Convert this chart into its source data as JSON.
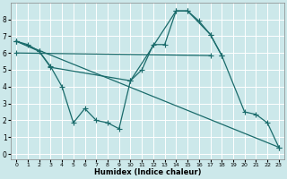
{
  "bg_color": "#cce8ea",
  "grid_color": "#ffffff",
  "line_color": "#1a6b6b",
  "line_width": 0.9,
  "marker": "+",
  "marker_size": 4,
  "marker_lw": 0.8,
  "xlabel": "Humidex (Indice chaleur)",
  "xlim": [
    -0.5,
    23.5
  ],
  "ylim": [
    -0.3,
    9.0
  ],
  "xticks": [
    0,
    1,
    2,
    3,
    4,
    5,
    6,
    7,
    8,
    9,
    10,
    11,
    12,
    13,
    14,
    15,
    16,
    17,
    18,
    19,
    20,
    21,
    22,
    23
  ],
  "yticks": [
    0,
    1,
    2,
    3,
    4,
    5,
    6,
    7,
    8
  ],
  "line1_x": [
    0,
    1,
    2,
    3,
    4,
    5,
    6,
    7,
    8,
    9,
    10,
    11,
    12,
    13,
    14,
    15,
    16,
    17,
    18
  ],
  "line1_y": [
    6.7,
    6.5,
    6.1,
    5.2,
    4.0,
    1.85,
    2.7,
    2.0,
    1.85,
    1.5,
    4.35,
    5.0,
    6.5,
    6.5,
    8.5,
    8.5,
    7.9,
    7.1,
    5.85
  ],
  "line2_x": [
    0,
    2,
    3,
    10,
    14,
    15,
    17,
    18,
    20,
    21,
    22,
    23
  ],
  "line2_y": [
    6.7,
    6.1,
    5.15,
    4.35,
    8.5,
    8.5,
    7.1,
    5.85,
    2.5,
    2.35,
    1.85,
    0.4
  ],
  "line3_x": [
    0,
    23
  ],
  "line3_y": [
    6.7,
    0.4
  ],
  "line4_x": [
    0,
    17
  ],
  "line4_y": [
    6.0,
    5.85
  ]
}
